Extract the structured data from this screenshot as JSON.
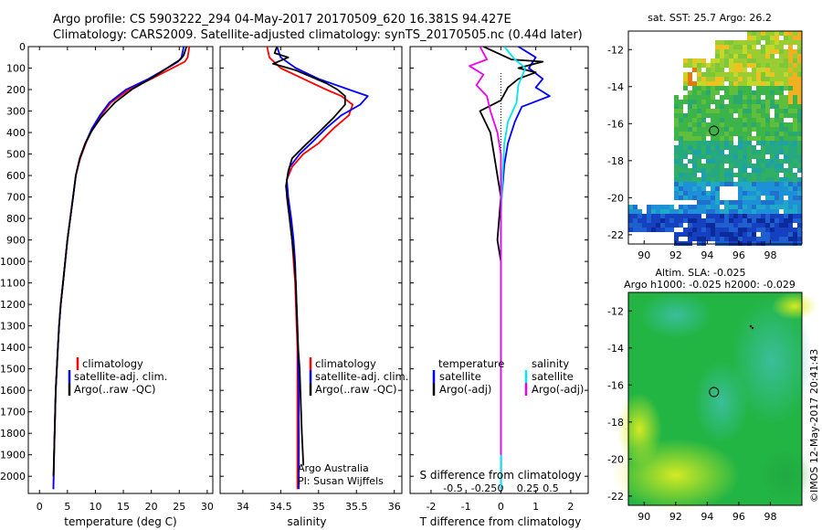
{
  "title": {
    "line1": "Argo profile: CS 5903222_294 04-May-2017 20170509_620 16.381S 94.427E",
    "line2": "Climatology: CARS2009. Satellite-adjusted climatology: synTS_20170505.nc (0.44d later)"
  },
  "colors": {
    "climatology": "#ff0000",
    "satellite": "#0000ff",
    "argo": "#000000",
    "salinity_satellite": "#00e5ee",
    "salinity_argo": "#ee00ee"
  },
  "chart_data": [
    {
      "type": "line",
      "name": "temperature-profile",
      "xlabel": "temperature (deg C)",
      "xlim": [
        -2,
        31
      ],
      "xticks": [
        0,
        5,
        10,
        15,
        20,
        25,
        30
      ],
      "ylim": [
        0,
        2080
      ],
      "yticks": [
        0,
        100,
        200,
        300,
        400,
        500,
        600,
        700,
        800,
        900,
        1000,
        1100,
        1200,
        1300,
        1400,
        1500,
        1600,
        1700,
        1800,
        1900,
        2000
      ],
      "y_reversed": true,
      "legend": [
        "climatology",
        "satellite-adj. clim.",
        "Argo(..raw -QC)"
      ],
      "series": [
        {
          "name": "climatology",
          "color": "#ff0000",
          "x": [
            26.8,
            26.5,
            26.0,
            24.5,
            20.0,
            16.0,
            12.8,
            11.0,
            9.5,
            8.3,
            7.3,
            6.5,
            6.0,
            5.5,
            5.0,
            4.6,
            4.2,
            3.8,
            3.5,
            3.3,
            3.1,
            2.9,
            2.8,
            2.7,
            2.6,
            2.5
          ],
          "y": [
            0,
            50,
            70,
            90,
            150,
            200,
            260,
            320,
            380,
            450,
            520,
            600,
            700,
            800,
            900,
            1000,
            1100,
            1200,
            1300,
            1400,
            1500,
            1600,
            1700,
            1800,
            1900,
            2060
          ]
        },
        {
          "name": "satellite-adj. clim.",
          "color": "#0000ff",
          "x": [
            25.8,
            25.4,
            24.8,
            23.5,
            19.5,
            15.5,
            12.5,
            10.8,
            9.4,
            8.2,
            7.2,
            6.5,
            6.0,
            5.5,
            5.0,
            4.6,
            4.2,
            3.8,
            3.5,
            3.3,
            3.1,
            2.9,
            2.8,
            2.7,
            2.6,
            2.5
          ],
          "y": [
            0,
            50,
            70,
            90,
            150,
            200,
            260,
            320,
            380,
            450,
            520,
            600,
            700,
            800,
            900,
            1000,
            1100,
            1200,
            1300,
            1400,
            1500,
            1600,
            1700,
            1800,
            1900,
            2060
          ]
        },
        {
          "name": "Argo(..raw -QC)",
          "color": "#000000",
          "x": [
            26.3,
            25.8,
            25.2,
            24.0,
            20.5,
            16.5,
            13.5,
            11.0,
            9.4,
            8.2,
            7.2,
            6.5,
            6.0,
            5.5,
            5.0,
            4.6,
            4.2,
            3.8,
            3.5,
            3.3,
            3.1,
            2.9,
            2.8,
            2.7,
            2.6,
            2.5
          ],
          "y": [
            0,
            40,
            60,
            80,
            140,
            200,
            260,
            330,
            390,
            450,
            520,
            600,
            700,
            800,
            900,
            1000,
            1100,
            1200,
            1300,
            1400,
            1500,
            1600,
            1700,
            1800,
            1900,
            2000
          ]
        }
      ]
    },
    {
      "type": "line",
      "name": "salinity-profile",
      "xlabel": "salinity",
      "xlim": [
        33.7,
        36.1
      ],
      "xticks": [
        34,
        34.5,
        35,
        35.5,
        36
      ],
      "ylim": [
        0,
        2080
      ],
      "y_reversed": true,
      "legend": [
        "climatology",
        "satellite-adj. clim.",
        "Argo(..raw -QC)"
      ],
      "annotation": [
        "Argo Australia",
        "PI: Susan Wijffels"
      ],
      "series": [
        {
          "name": "climatology",
          "color": "#ff0000",
          "x": [
            34.32,
            34.35,
            34.5,
            34.8,
            35.1,
            35.3,
            35.45,
            35.4,
            35.2,
            35.0,
            34.8,
            34.65,
            34.58,
            34.58,
            34.62,
            34.65,
            34.67,
            34.69,
            34.7,
            34.71,
            34.72,
            34.72,
            34.72,
            34.72,
            34.72,
            34.72
          ],
          "y": [
            0,
            50,
            100,
            150,
            200,
            230,
            270,
            320,
            380,
            450,
            500,
            560,
            620,
            700,
            800,
            900,
            1000,
            1100,
            1200,
            1300,
            1400,
            1500,
            1600,
            1700,
            1800,
            2060
          ]
        },
        {
          "name": "satellite-adj. clim.",
          "color": "#0000ff",
          "x": [
            34.45,
            34.5,
            34.7,
            35.0,
            35.4,
            35.65,
            35.55,
            35.3,
            35.1,
            34.9,
            34.75,
            34.62,
            34.58,
            34.6,
            34.64,
            34.67,
            34.69,
            34.7,
            34.71,
            34.72,
            34.73,
            34.73,
            34.74,
            34.74,
            34.74,
            34.74
          ],
          "y": [
            0,
            50,
            100,
            150,
            200,
            230,
            270,
            320,
            380,
            450,
            500,
            560,
            620,
            700,
            800,
            900,
            1000,
            1100,
            1200,
            1300,
            1400,
            1500,
            1600,
            1700,
            1800,
            2060
          ]
        },
        {
          "name": "Argo(..raw -QC)",
          "color": "#000000",
          "x": [
            34.45,
            34.42,
            34.6,
            34.4,
            34.7,
            34.9,
            35.1,
            35.25,
            35.35,
            35.35,
            35.2,
            35.0,
            34.82,
            34.65,
            34.6,
            34.57,
            34.6,
            34.65,
            34.68,
            34.7,
            34.72,
            34.73,
            34.75,
            34.76,
            34.77,
            34.78,
            34.8
          ],
          "y": [
            0,
            30,
            50,
            80,
            110,
            140,
            170,
            200,
            230,
            270,
            330,
            400,
            460,
            520,
            580,
            650,
            750,
            900,
            1000,
            1100,
            1300,
            1400,
            1500,
            1600,
            1700,
            1800,
            1950
          ]
        }
      ]
    },
    {
      "type": "line",
      "name": "difference-profile",
      "xlabel": "T difference from climatology",
      "xlabel_top": "S difference from climatology",
      "xlim": [
        -2.6,
        2.5
      ],
      "xticks": [
        -2,
        -1,
        0,
        1,
        2
      ],
      "xticks_s": [
        -0.5,
        -0.25,
        0,
        0.25,
        0.5
      ],
      "ylim": [
        0,
        2080
      ],
      "y_reversed": true,
      "legend_left": {
        "header": "temperature",
        "items": [
          "satellite",
          "Argo(-adj)"
        ]
      },
      "legend_right": {
        "header": "salinity",
        "items": [
          "satellite",
          "Argo(-adj)"
        ]
      },
      "series": [
        {
          "name": "temperature satellite",
          "color": "#0000ff",
          "x": [
            0.5,
            1.0,
            0.8,
            1.2,
            1.0,
            1.4,
            0.6,
            0.4,
            0.2,
            0.1,
            0.05,
            0.0,
            0.0,
            0.0,
            0.0,
            0.0,
            0.0,
            0.0,
            0.0,
            0.0,
            0.0
          ],
          "y": [
            0,
            50,
            100,
            150,
            190,
            230,
            280,
            350,
            450,
            550,
            650,
            750,
            900,
            1100,
            1300,
            1500,
            1700,
            1900,
            2000,
            2050,
            2060
          ]
        },
        {
          "name": "temperature Argo(-adj)",
          "color": "#000000",
          "x": [
            -0.5,
            0.3,
            1.2,
            0.5,
            1.0,
            0.5,
            0.2,
            0.0,
            -0.6,
            -0.3,
            -0.2,
            -0.1,
            0.0,
            -0.1,
            0.0,
            0.0,
            0.0,
            0.0
          ],
          "y": [
            0,
            60,
            70,
            100,
            120,
            150,
            190,
            250,
            300,
            400,
            500,
            600,
            700,
            900,
            1000,
            1300,
            1600,
            2000
          ]
        },
        {
          "name": "salinity satellite",
          "color": "#00e5ee",
          "x": [
            0.1,
            0.4,
            0.7,
            0.5,
            0.45,
            0.2,
            0.1,
            0.05,
            0.0,
            0.0,
            0.0,
            0.0
          ],
          "y": [
            0,
            60,
            100,
            180,
            260,
            350,
            450,
            600,
            800,
            1200,
            1600,
            2060
          ]
        },
        {
          "name": "salinity Argo(-adj)",
          "color": "#ee00ee",
          "x": [
            -0.6,
            -0.4,
            -0.9,
            -0.5,
            -0.7,
            -0.4,
            -0.3,
            -0.1,
            0.0,
            0.0,
            0.0,
            0.0,
            0.0
          ],
          "y": [
            0,
            60,
            90,
            130,
            180,
            230,
            300,
            400,
            500,
            700,
            900,
            1400,
            1900
          ]
        }
      ]
    },
    {
      "type": "heatmap",
      "name": "sst-map",
      "title": "sat. SST: 25.7 Argo: 26.2",
      "xlim": [
        89,
        100
      ],
      "ylim": [
        -22.5,
        -11
      ],
      "xticks": [
        90,
        92,
        94,
        96,
        98
      ],
      "yticks": [
        -12,
        -14,
        -16,
        -18,
        -20,
        -22
      ],
      "marker": {
        "lon": 94.427,
        "lat": -16.381
      }
    },
    {
      "type": "heatmap",
      "name": "sla-map",
      "title": "Altim. SLA: -0.025",
      "subtitle": "Argo h1000: -0.025 h2000: -0.029",
      "xlim": [
        89,
        100
      ],
      "ylim": [
        -22.5,
        -11
      ],
      "xticks": [
        90,
        92,
        94,
        96,
        98
      ],
      "yticks": [
        -12,
        -14,
        -16,
        -18,
        -20,
        -22
      ],
      "marker": {
        "lon": 94.427,
        "lat": -16.381
      }
    }
  ],
  "credit": "©IMOS 12-May-2017 20:41:43"
}
